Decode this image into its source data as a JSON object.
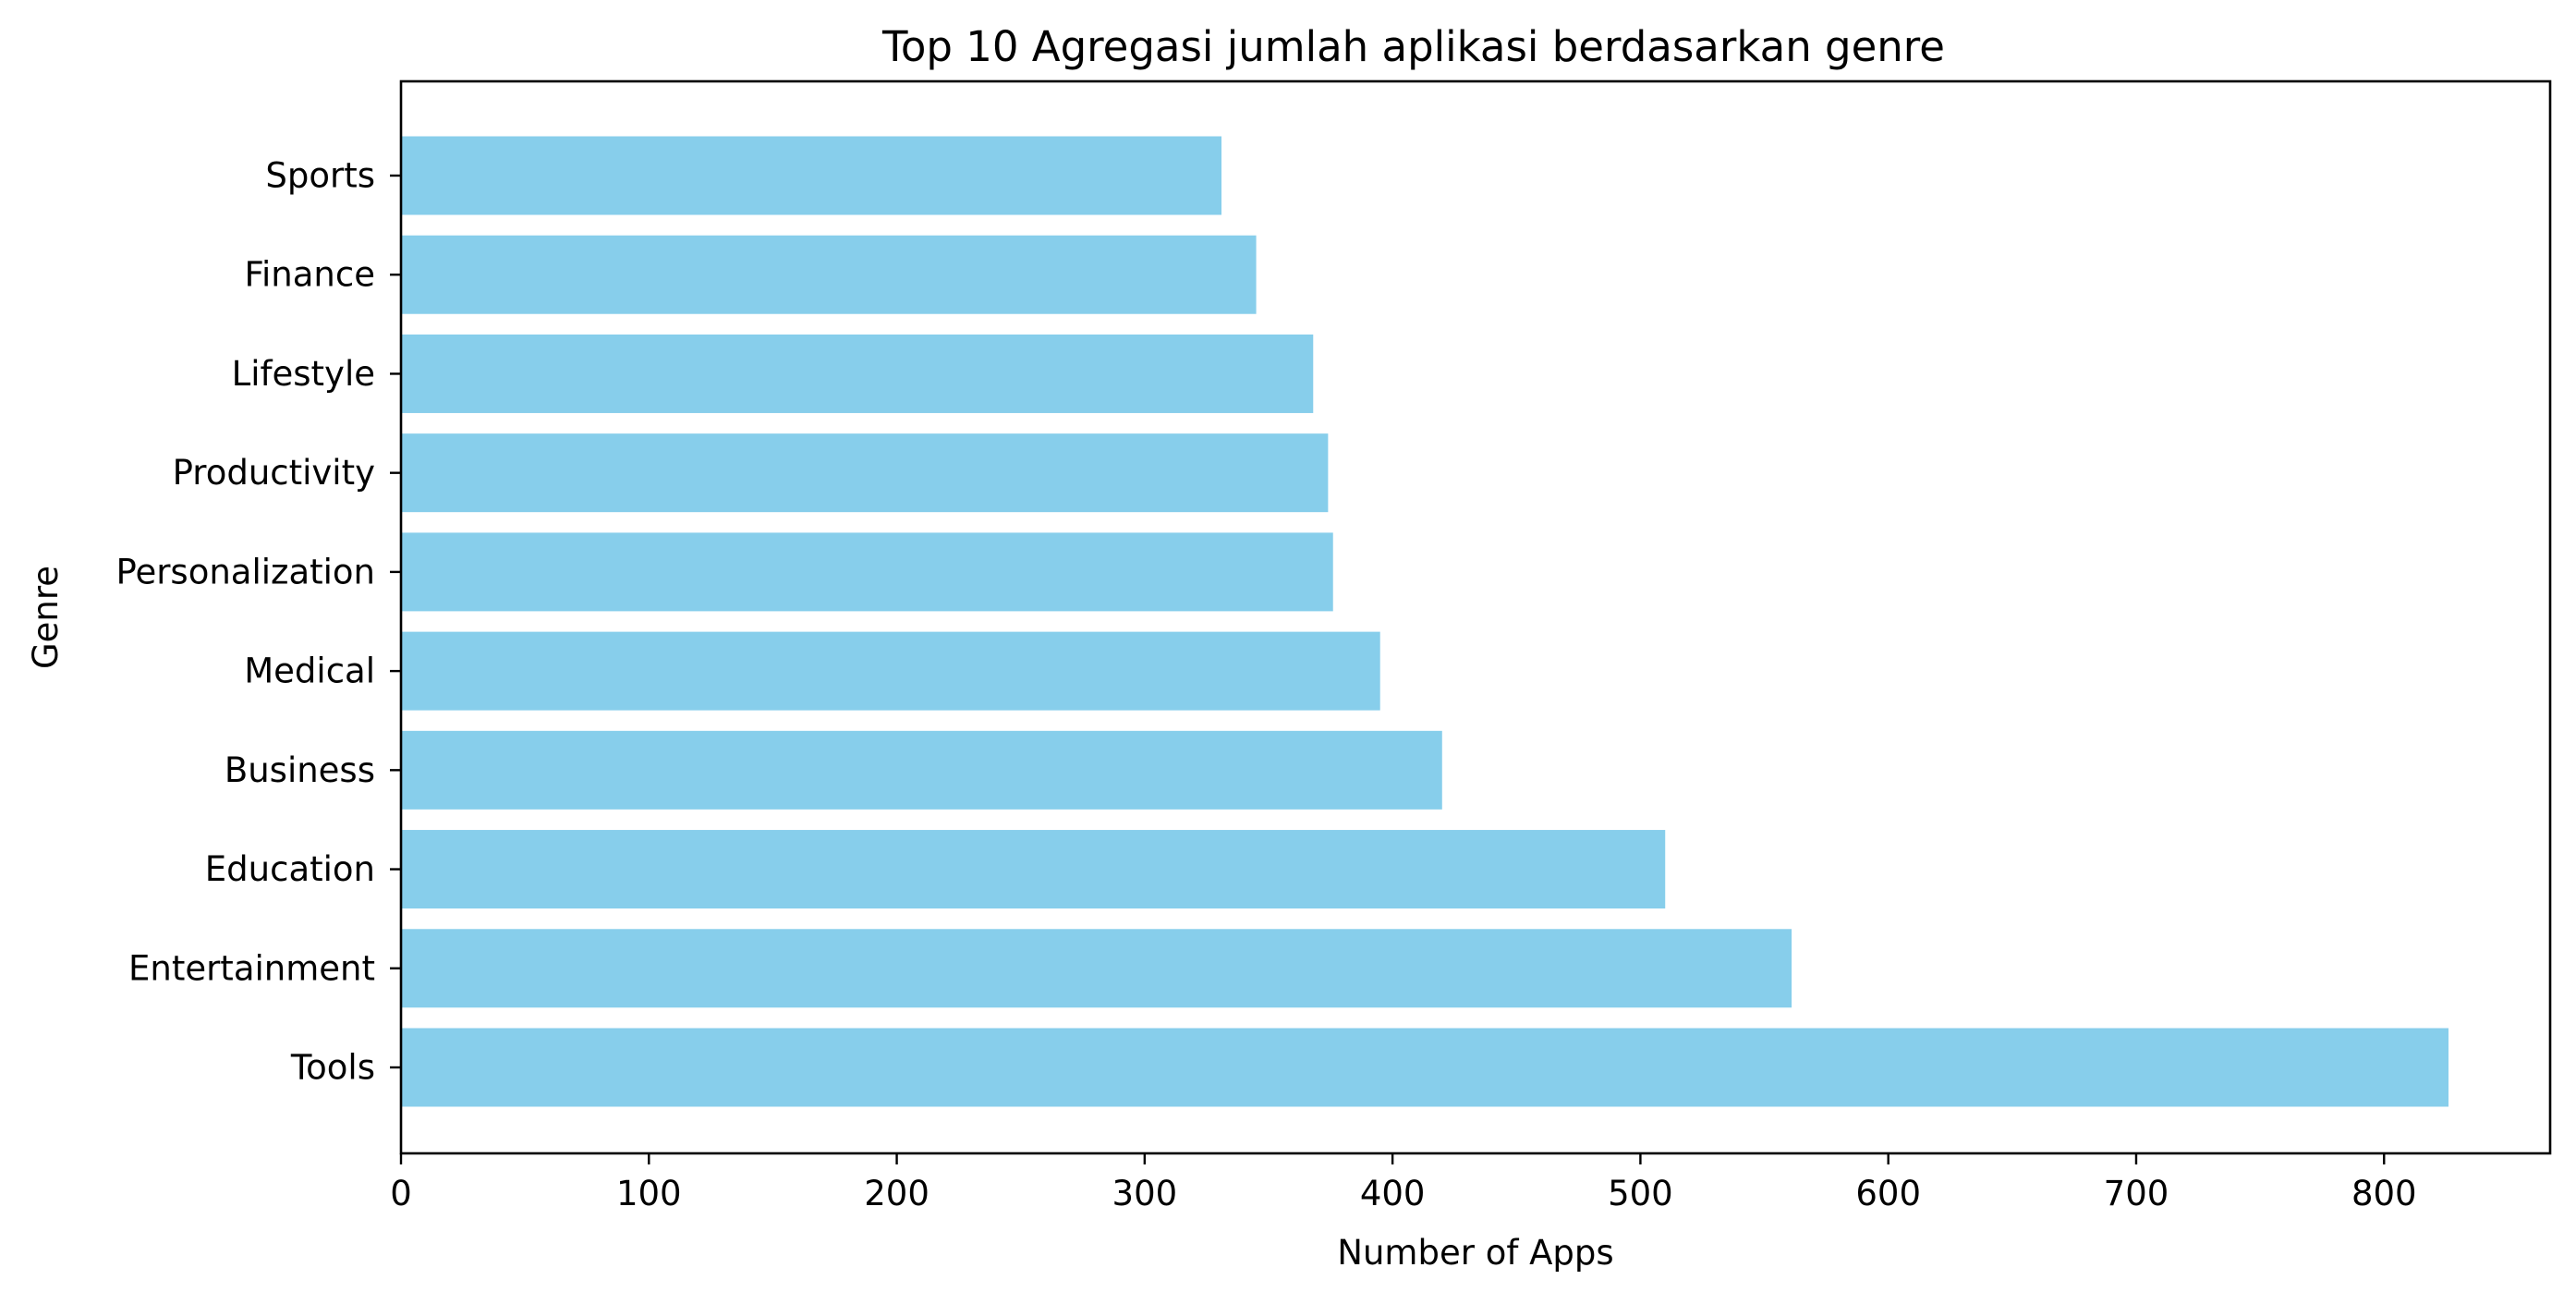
{
  "chart_data": {
    "type": "bar",
    "orientation": "horizontal",
    "title": "Top 10 Agregasi jumlah aplikasi berdasarkan genre",
    "xlabel": "Number of Apps",
    "ylabel": "Genre",
    "categories": [
      "Tools",
      "Entertainment",
      "Education",
      "Business",
      "Medical",
      "Personalization",
      "Productivity",
      "Lifestyle",
      "Finance",
      "Sports"
    ],
    "values": [
      826,
      561,
      510,
      420,
      395,
      376,
      374,
      368,
      345,
      331
    ],
    "xlim": [
      0,
      867
    ],
    "xticks": [
      "0",
      "100",
      "200",
      "300",
      "400",
      "500",
      "600",
      "700",
      "800"
    ],
    "grid": false,
    "legend": "none",
    "bar_color": "#87ceeb"
  }
}
